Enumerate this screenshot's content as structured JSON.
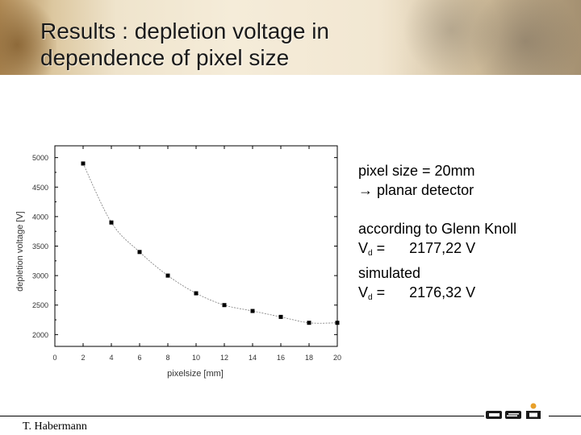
{
  "slide": {
    "title_line1": "Results : depletion voltage in",
    "title_line2": "dependence of pixel size",
    "author": "T. Habermann",
    "logo_text": "GSI"
  },
  "notes": {
    "line1": "pixel size = 20mm",
    "line2": "→ planar detector",
    "line3": "according to Glenn Knoll",
    "vd_label": "V",
    "vd_sub": "d",
    "vd_value1": " =      2177,22 V",
    "line5": "simulated",
    "vd_value2": " =      2176,32 V"
  },
  "chart_data": {
    "type": "scatter",
    "xlabel": "pixelsize [mm]",
    "ylabel": "depletion voltage [V]",
    "xlim": [
      0,
      20
    ],
    "ylim": [
      1800,
      5200
    ],
    "xticks": [
      0,
      2,
      4,
      6,
      8,
      10,
      12,
      14,
      16,
      18,
      20
    ],
    "yticks": [
      2000,
      2500,
      3000,
      3500,
      4000,
      4500,
      5000
    ],
    "series": [
      {
        "x": [
          2,
          4,
          6,
          8,
          10,
          12,
          14,
          16,
          18,
          20
        ],
        "y": [
          4900,
          3900,
          3400,
          3000,
          2700,
          2500,
          2400,
          2300,
          2200,
          2200
        ]
      }
    ],
    "grid": false
  }
}
